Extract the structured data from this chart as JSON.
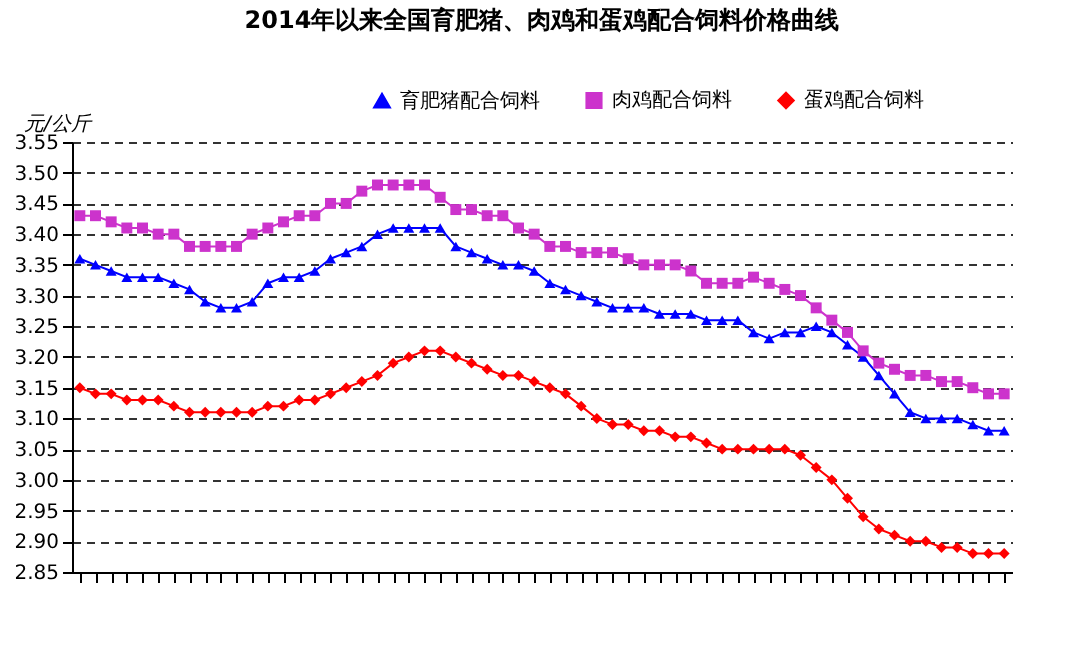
{
  "chart_data": {
    "type": "line",
    "title": "2014年以来全国育肥猪、肉鸡和蛋鸡配合饲料价格曲线",
    "ylabel": "元/公斤",
    "categories": [
      null,
      null,
      null,
      null,
      null,
      null,
      null,
      null,
      null,
      null,
      null,
      null,
      null,
      null,
      null,
      null,
      null,
      null,
      null,
      null,
      null,
      null,
      null,
      null,
      null,
      null,
      null,
      null,
      null,
      null,
      null,
      null,
      null,
      null,
      null,
      null,
      null,
      null,
      null,
      null,
      null,
      null,
      null,
      null,
      null,
      null,
      null,
      null,
      null,
      null,
      null,
      null,
      null,
      null,
      null,
      null,
      null,
      null,
      null,
      null
    ],
    "series": [
      {
        "name": "育肥猪配合饲料",
        "color": "#0000ff",
        "marker": "triangle",
        "values": [
          3.36,
          3.35,
          3.34,
          3.33,
          3.33,
          3.33,
          3.32,
          3.31,
          3.29,
          3.28,
          3.28,
          3.29,
          3.32,
          3.33,
          3.33,
          3.34,
          3.36,
          3.37,
          3.38,
          3.4,
          3.41,
          3.41,
          3.41,
          3.41,
          3.38,
          3.37,
          3.36,
          3.35,
          3.35,
          3.34,
          3.32,
          3.31,
          3.3,
          3.29,
          3.28,
          3.28,
          3.28,
          3.27,
          3.27,
          3.27,
          3.26,
          3.26,
          3.26,
          3.24,
          3.23,
          3.24,
          3.24,
          3.25,
          3.24,
          3.22,
          3.2,
          3.17,
          3.14,
          3.11,
          3.1,
          3.1,
          3.1,
          3.09,
          3.08,
          3.08
        ]
      },
      {
        "name": "肉鸡配合饲料",
        "color": "#cc33cc",
        "marker": "square",
        "values": [
          3.43,
          3.43,
          3.42,
          3.41,
          3.41,
          3.4,
          3.4,
          3.38,
          3.38,
          3.38,
          3.38,
          3.4,
          3.41,
          3.42,
          3.43,
          3.43,
          3.45,
          3.45,
          3.47,
          3.48,
          3.48,
          3.48,
          3.48,
          3.46,
          3.44,
          3.44,
          3.43,
          3.43,
          3.41,
          3.4,
          3.38,
          3.38,
          3.37,
          3.37,
          3.37,
          3.36,
          3.35,
          3.35,
          3.35,
          3.34,
          3.32,
          3.32,
          3.32,
          3.33,
          3.32,
          3.31,
          3.3,
          3.28,
          3.26,
          3.24,
          3.21,
          3.19,
          3.18,
          3.17,
          3.17,
          3.16,
          3.16,
          3.15,
          3.14,
          3.14
        ]
      },
      {
        "name": "蛋鸡配合饲料",
        "color": "#ff0000",
        "marker": "diamond",
        "values": [
          3.15,
          3.14,
          3.14,
          3.13,
          3.13,
          3.13,
          3.12,
          3.11,
          3.11,
          3.11,
          3.11,
          3.11,
          3.12,
          3.12,
          3.13,
          3.13,
          3.14,
          3.15,
          3.16,
          3.17,
          3.19,
          3.2,
          3.21,
          3.21,
          3.2,
          3.19,
          3.18,
          3.17,
          3.17,
          3.16,
          3.15,
          3.14,
          3.12,
          3.1,
          3.09,
          3.09,
          3.08,
          3.08,
          3.07,
          3.07,
          3.06,
          3.05,
          3.05,
          3.05,
          3.05,
          3.05,
          3.04,
          3.02,
          3.0,
          2.97,
          2.94,
          2.92,
          2.91,
          2.9,
          2.9,
          2.89,
          2.89,
          2.88,
          2.88,
          2.88
        ]
      }
    ],
    "ylim": [
      2.85,
      3.55
    ],
    "yticks": [
      {
        "value": 2.85,
        "label": "2.85"
      },
      {
        "value": 2.9,
        "label": "2.90"
      },
      {
        "value": 2.95,
        "label": "2.95"
      },
      {
        "value": 3.0,
        "label": "3.00"
      },
      {
        "value": 3.05,
        "label": "3.05"
      },
      {
        "value": 3.1,
        "label": "3.10"
      },
      {
        "value": 3.15,
        "label": "3.15"
      },
      {
        "value": 3.2,
        "label": "3.20"
      },
      {
        "value": 3.25,
        "label": "3.25"
      },
      {
        "value": 3.3,
        "label": "3.30"
      },
      {
        "value": 3.35,
        "label": "3.35"
      },
      {
        "value": 3.4,
        "label": "3.40"
      },
      {
        "value": 3.45,
        "label": "3.45"
      },
      {
        "value": 3.5,
        "label": "3.50"
      },
      {
        "value": 3.55,
        "label": "3.55"
      }
    ],
    "grid": "y",
    "legend": "top right",
    "tick_labels": "y"
  }
}
